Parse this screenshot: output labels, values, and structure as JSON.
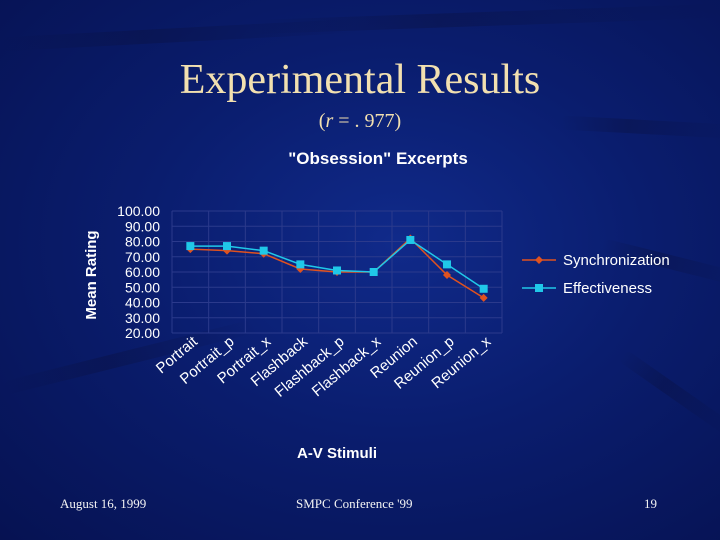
{
  "slide": {
    "title": "Experimental Results",
    "subtitle_open": "(",
    "subtitle_var": "r",
    "subtitle_rest": " = . 977)"
  },
  "footer": {
    "date": "August 16, 1999",
    "conference": "SMPC Conference '99",
    "page": "19"
  },
  "colors": {
    "title": "#f2e0b0",
    "chart_text": "#ffffff",
    "synchronization": "#e0521f",
    "effectiveness": "#20c8e8",
    "grid": "#2b3a8c"
  },
  "chart_data": {
    "type": "line",
    "title": "\"Obsession\" Excerpts",
    "xlabel": "A-V Stimuli",
    "ylabel": "Mean Rating",
    "categories": [
      "Portrait",
      "Portrait_p",
      "Portrait_x",
      "Flashback",
      "Flashback_p",
      "Flashback_x",
      "Reunion",
      "Reunion_p",
      "Reunion_x"
    ],
    "ylim": [
      20,
      100
    ],
    "yticks": [
      "100.00",
      "90.00",
      "80.00",
      "70.00",
      "60.00",
      "50.00",
      "40.00",
      "30.00",
      "20.00"
    ],
    "series": [
      {
        "name": "Synchronization",
        "marker": "diamond",
        "values": [
          75,
          74,
          72,
          62,
          60,
          60,
          82,
          58,
          43
        ]
      },
      {
        "name": "Effectiveness",
        "marker": "square",
        "values": [
          77,
          77,
          74,
          65,
          61,
          60,
          81,
          65,
          49
        ]
      }
    ],
    "legend_position": "right"
  }
}
